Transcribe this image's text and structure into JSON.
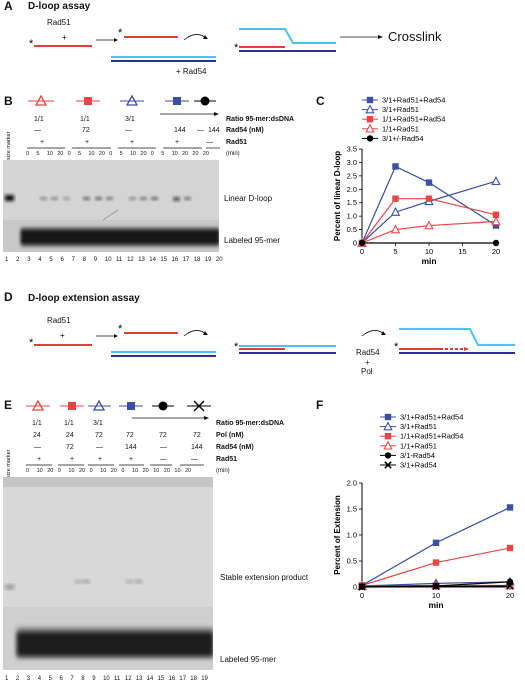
{
  "panelA": {
    "letter": "A",
    "title": "D-loop assay",
    "rad51_label": "Rad51",
    "plus": "+",
    "rad54_label": "+  Rad54",
    "result": "Crosslink",
    "asterisk": "*"
  },
  "panelB": {
    "letter": "B",
    "size_marker": "size marker",
    "ratio_vals": [
      "1/1",
      "1/1",
      "3/1"
    ],
    "ratio_label": "Ratio 95-mer:dsDNA",
    "rad54_vals": [
      "—",
      "72",
      "—",
      "144",
      "—",
      "144"
    ],
    "rad54_label": "Rad54 (nM)",
    "rad51_vals": [
      "+",
      "+",
      "+",
      "+",
      "—"
    ],
    "rad51_label": "Rad51",
    "time_label": "(min)",
    "time_row": [
      "0",
      "5",
      "10",
      "20",
      "0",
      "5",
      "10",
      "20",
      "0",
      "5",
      "10",
      "20",
      "0",
      "5",
      "10",
      "20",
      "20",
      "20"
    ],
    "band_top": "Linear D-loop",
    "band_bottom": "Labeled 95-mer",
    "lanes": [
      "1",
      "2",
      "3",
      "4",
      "5",
      "6",
      "7",
      "8",
      "9",
      "10",
      "11",
      "12",
      "13",
      "14",
      "15",
      "16",
      "17",
      "18",
      "19",
      "20"
    ]
  },
  "panelC": {
    "letter": "C",
    "chart_data": {
      "type": "line",
      "x": [
        0,
        5,
        10,
        20
      ],
      "xlabel": "min",
      "ylabel": "Percent of linear D-loop",
      "ylim": [
        0,
        3.5
      ],
      "yticks": [
        "0",
        "0.5",
        "1.0",
        "1.5",
        "2.0",
        "2.5",
        "3.0",
        "3.5"
      ],
      "xticks": [
        "0",
        "5",
        "10",
        "15",
        "20"
      ],
      "series": [
        {
          "name": "3/1+Rad51+Rad54",
          "x": [
            0,
            5,
            10,
            20
          ],
          "values": [
            0,
            2.85,
            2.25,
            0.65
          ],
          "color": "#3b4fa3",
          "marker": "square-filled"
        },
        {
          "name": "3/1+Rad51",
          "x": [
            0,
            5,
            10,
            20
          ],
          "values": [
            0,
            1.15,
            1.55,
            2.3
          ],
          "color": "#3b4fa3",
          "marker": "triangle-open"
        },
        {
          "name": "1/1+Rad51+Rad54",
          "x": [
            0,
            5,
            10,
            20
          ],
          "values": [
            0,
            1.65,
            1.65,
            1.05
          ],
          "color": "#e84545",
          "marker": "square-filled"
        },
        {
          "name": "1/1+Rad51",
          "x": [
            0,
            5,
            10,
            20
          ],
          "values": [
            0,
            0.5,
            0.65,
            0.8
          ],
          "color": "#e84545",
          "marker": "triangle-open"
        },
        {
          "name": "3/1+/-Rad54",
          "x": [
            0,
            20
          ],
          "values": [
            0,
            0
          ],
          "color": "#000000",
          "marker": "circle-filled"
        }
      ]
    }
  },
  "panelD": {
    "letter": "D",
    "title": "D-loop extension assay",
    "rad51_label": "Rad51",
    "plus": "+",
    "rad54_label": "Rad54",
    "plus2": "+",
    "pol_label": "Pol",
    "asterisk": "*"
  },
  "panelE": {
    "letter": "E",
    "size_marker": "size marker",
    "ratio_vals": [
      "1/1",
      "1/1",
      "3/1"
    ],
    "ratio_label": "Ratio 95-mer:dsDNA",
    "pol_vals": [
      "24",
      "24",
      "72",
      "72",
      "72",
      "72"
    ],
    "pol_label": "Pol (nM)",
    "rad54_vals": [
      "—",
      "72",
      "—",
      "144",
      "—",
      "144"
    ],
    "rad54_label": "Rad54 (nM)",
    "rad51_vals": [
      "+",
      "+",
      "+",
      "+",
      "—",
      "—"
    ],
    "rad51_label": "Rad51",
    "time_label": "(min)",
    "time_row": [
      "0",
      "10",
      "20",
      "0",
      "10",
      "20",
      "0",
      "10",
      "20",
      "0",
      "10",
      "20",
      "10",
      "20",
      "10",
      "20"
    ],
    "band_top": "Stable extension product",
    "band_bottom": "Labeled 95-mer",
    "lanes": [
      "1",
      "2",
      "3",
      "4",
      "5",
      "6",
      "7",
      "8",
      "9",
      "10",
      "11",
      "12",
      "13",
      "14",
      "15",
      "16",
      "17",
      "18",
      "19"
    ]
  },
  "panelF": {
    "letter": "F",
    "chart_data": {
      "type": "line",
      "x": [
        0,
        10,
        20
      ],
      "xlabel": "min",
      "ylabel": "Percent of Extension",
      "ylim": [
        0,
        2.0
      ],
      "yticks": [
        "0",
        "0.5",
        "1.0",
        "1.5",
        "2.0"
      ],
      "xticks": [
        "0",
        "10",
        "20"
      ],
      "series": [
        {
          "name": "3/1+Rad51+Rad54",
          "x": [
            0,
            10,
            20
          ],
          "values": [
            0.03,
            0.85,
            1.53
          ],
          "color": "#3b4fa3",
          "marker": "square-filled"
        },
        {
          "name": "3/1+Rad51",
          "x": [
            0,
            10,
            20
          ],
          "values": [
            0.02,
            0.07,
            0.1
          ],
          "color": "#3b4fa3",
          "marker": "triangle-open"
        },
        {
          "name": "1/1+Rad51+Rad54",
          "x": [
            0,
            10,
            20
          ],
          "values": [
            0.03,
            0.47,
            0.75
          ],
          "color": "#e84545",
          "marker": "square-filled"
        },
        {
          "name": "1/1+Rad51",
          "x": [
            0,
            10,
            20
          ],
          "values": [
            0.02,
            0.03,
            0.03
          ],
          "color": "#e84545",
          "marker": "triangle-open"
        },
        {
          "name": "3/1-Rad54",
          "x": [
            0,
            10,
            20
          ],
          "values": [
            0.01,
            0.02,
            0.1
          ],
          "color": "#000000",
          "marker": "circle-filled"
        },
        {
          "name": "3/1+Rad54",
          "x": [
            0,
            10,
            20
          ],
          "values": [
            0.0,
            0.01,
            0.02
          ],
          "color": "#000000",
          "marker": "x"
        }
      ]
    }
  }
}
